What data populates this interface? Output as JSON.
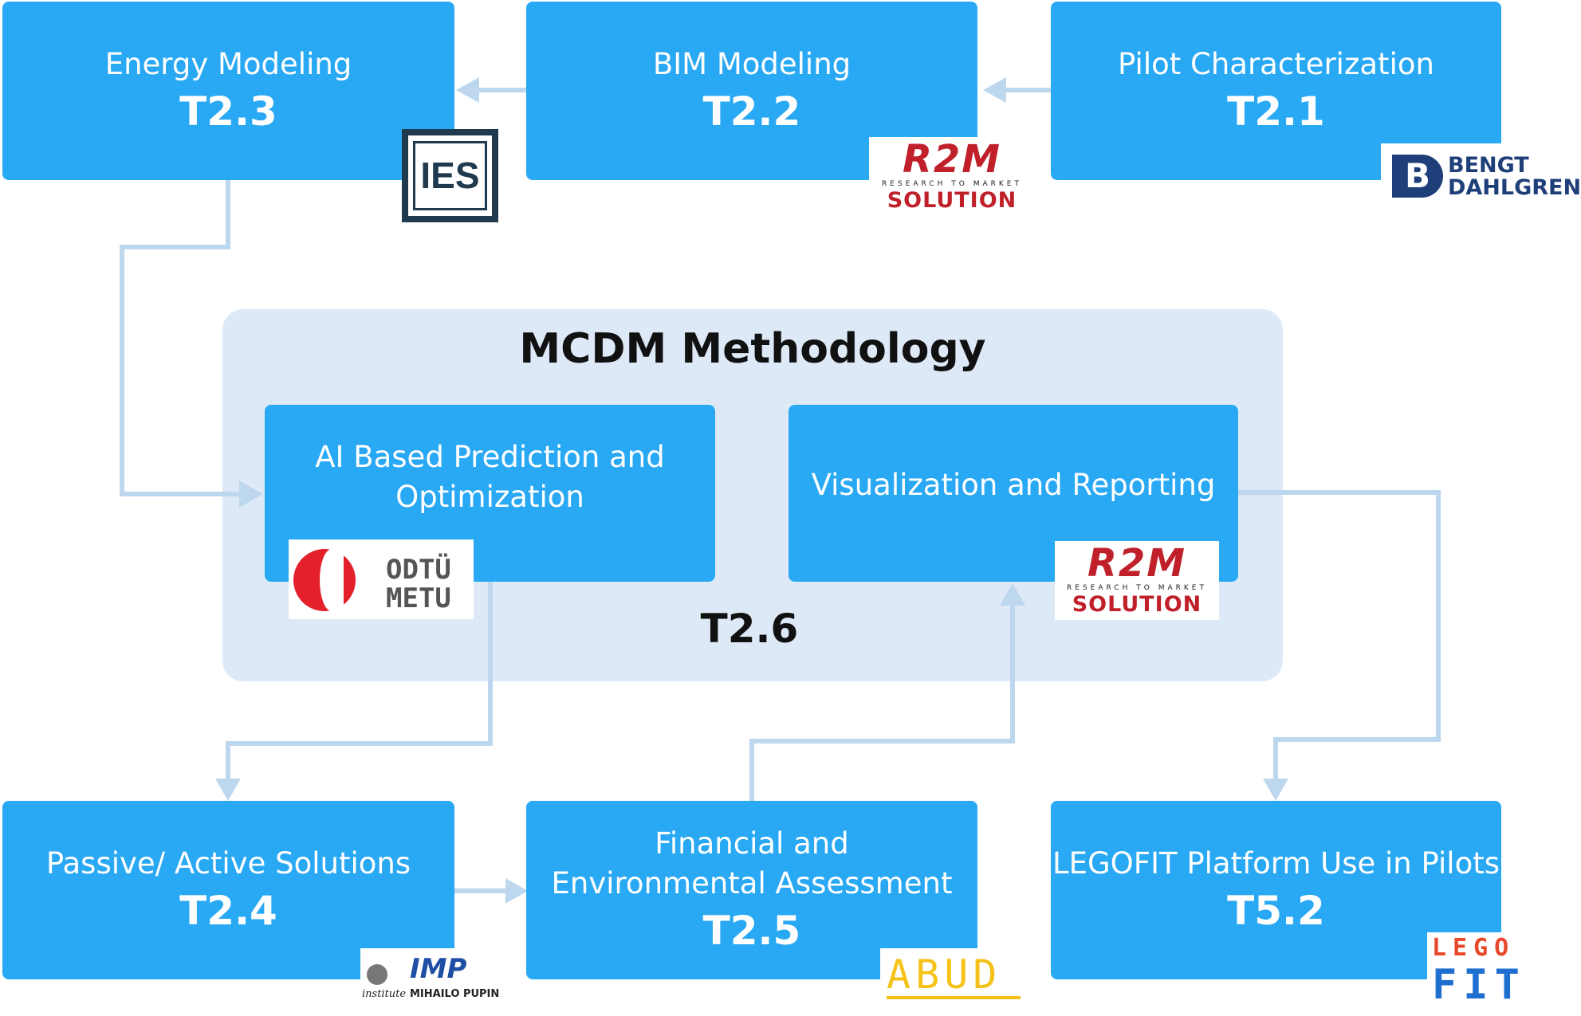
{
  "boxes": {
    "t23": {
      "label": "Energy Modeling",
      "code": "T2.3"
    },
    "t22": {
      "label": "BIM Modeling",
      "code": "T2.2"
    },
    "t21": {
      "label": "Pilot Characterization",
      "code": "T2.1"
    },
    "ai": {
      "label": "AI Based Prediction and Optimization"
    },
    "vis": {
      "label": "Visualization and Reporting"
    },
    "t24": {
      "label": "Passive/ Active Solutions",
      "code": "T2.4"
    },
    "t25": {
      "label": "Financial and Environmental Assessment",
      "code": "T2.5"
    },
    "t52": {
      "label": "LEGOFIT Platform Use in Pilots",
      "code": "T5.2"
    }
  },
  "panel": {
    "title": "MCDM Methodology",
    "code": "T2.6"
  },
  "logos": {
    "ies": "IES",
    "rtm": {
      "main": "R2M",
      "sub": "RESEARCH TO MARKET",
      "solution": "SOLUTION"
    },
    "bengt": {
      "line1": "BENGT",
      "line2": "DAHLGREN"
    },
    "metu": {
      "line1": "ODTÜ",
      "line2": "METU"
    },
    "imp": {
      "main": "IMP",
      "sub1": "institute",
      "sub2": "MIHAILO PUPIN"
    },
    "abud": "ABUD",
    "legofit": {
      "line1": "LEGO",
      "line2": "FIT"
    }
  },
  "colors": {
    "box": "#29a8f4",
    "panel": "#dde9f6",
    "arrow": "#bdd7ee",
    "r2m_red": "#c0202a",
    "dark_blue": "#1f3864"
  }
}
